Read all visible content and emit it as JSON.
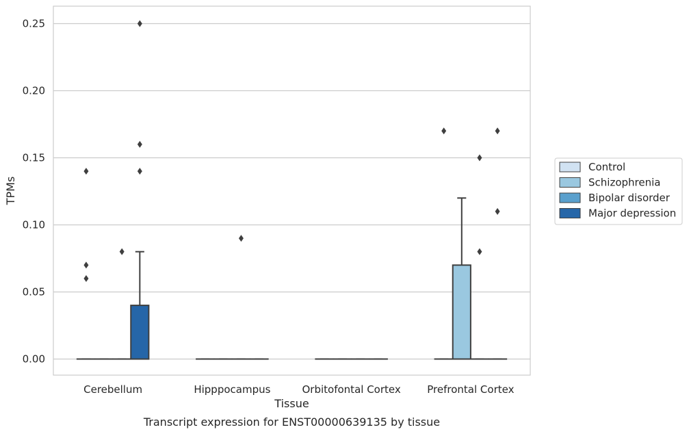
{
  "chart_data": {
    "type": "boxplot",
    "title": "",
    "caption": "Transcript expression for ENST00000639135 by tissue",
    "xlabel": "Tissue",
    "ylabel": "TPMs",
    "ylim": [
      -0.012,
      0.263
    ],
    "yticks": [
      "0.00",
      "0.05",
      "0.10",
      "0.15",
      "0.20",
      "0.25"
    ],
    "ytick_values": [
      0,
      0.05,
      0.1,
      0.15,
      0.2,
      0.25
    ],
    "grid": "horizontal",
    "legend_position": "right",
    "categories": [
      "Cerebellum",
      "Hipppocampus",
      "Orbitofontal Cortex",
      "Prefrontal Cortex"
    ],
    "series": [
      {
        "name": "Control",
        "color": "#d1e2f2"
      },
      {
        "name": "Schizophrenia",
        "color": "#9ac8e0"
      },
      {
        "name": "Bipolar disorder",
        "color": "#5aa0cd"
      },
      {
        "name": "Major depression",
        "color": "#2666a8"
      }
    ],
    "boxes": [
      [
        {
          "q1": 0,
          "median": 0,
          "q3": 0,
          "whislo": 0,
          "whishi": 0,
          "fliers": [
            0.06,
            0.07,
            0.14
          ]
        },
        {
          "q1": 0,
          "median": 0,
          "q3": 0,
          "whislo": 0,
          "whishi": 0,
          "fliers": []
        },
        {
          "q1": 0,
          "median": 0,
          "q3": 0,
          "whislo": 0,
          "whishi": 0,
          "fliers": [
            0.08
          ]
        },
        {
          "q1": 0,
          "median": 0,
          "q3": 0.04,
          "whislo": 0,
          "whishi": 0.08,
          "fliers": [
            0.14,
            0.16,
            0.25
          ]
        }
      ],
      [
        {
          "q1": 0,
          "median": 0,
          "q3": 0,
          "whislo": 0,
          "whishi": 0,
          "fliers": []
        },
        {
          "q1": 0,
          "median": 0,
          "q3": 0,
          "whislo": 0,
          "whishi": 0,
          "fliers": []
        },
        {
          "q1": 0,
          "median": 0,
          "q3": 0,
          "whislo": 0,
          "whishi": 0,
          "fliers": [
            0.09
          ]
        },
        {
          "q1": 0,
          "median": 0,
          "q3": 0,
          "whislo": 0,
          "whishi": 0,
          "fliers": []
        }
      ],
      [
        {
          "q1": 0,
          "median": 0,
          "q3": 0,
          "whislo": 0,
          "whishi": 0,
          "fliers": []
        },
        {
          "q1": 0,
          "median": 0,
          "q3": 0,
          "whislo": 0,
          "whishi": 0,
          "fliers": []
        },
        {
          "q1": 0,
          "median": 0,
          "q3": 0,
          "whislo": 0,
          "whishi": 0,
          "fliers": []
        },
        {
          "q1": 0,
          "median": 0,
          "q3": 0,
          "whislo": 0,
          "whishi": 0,
          "fliers": []
        }
      ],
      [
        {
          "q1": 0,
          "median": 0,
          "q3": 0,
          "whislo": 0,
          "whishi": 0,
          "fliers": [
            0.17
          ]
        },
        {
          "q1": 0,
          "median": 0,
          "q3": 0.07,
          "whislo": 0,
          "whishi": 0.12,
          "fliers": []
        },
        {
          "q1": 0,
          "median": 0,
          "q3": 0,
          "whislo": 0,
          "whishi": 0,
          "fliers": [
            0.08,
            0.15
          ]
        },
        {
          "q1": 0,
          "median": 0,
          "q3": 0,
          "whislo": 0,
          "whishi": 0,
          "fliers": [
            0.11,
            0.17
          ]
        }
      ]
    ],
    "colors": {
      "axes_edge": "#cccccc",
      "grid": "#cccccc",
      "box_edge": "#3f3f3f",
      "flier": "#3f3f3f"
    }
  }
}
